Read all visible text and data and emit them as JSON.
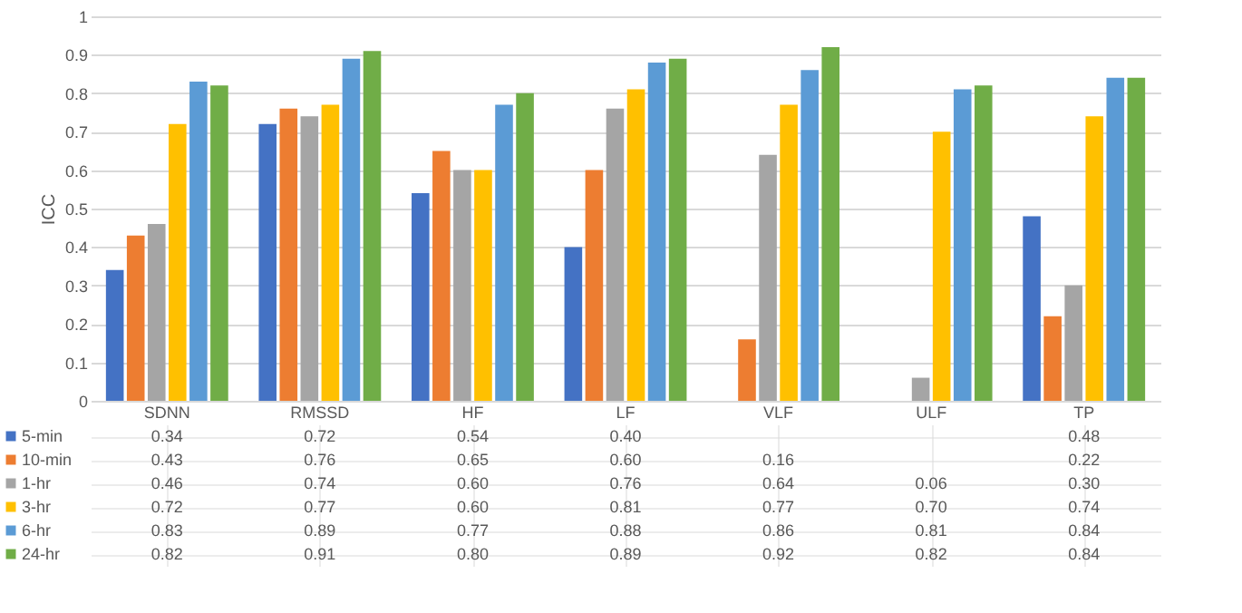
{
  "chart_data": {
    "type": "bar",
    "ylabel": "ICC",
    "categories": [
      "SDNN",
      "RMSSD",
      "HF",
      "LF",
      "VLF",
      "ULF",
      "TP"
    ],
    "series": [
      {
        "name": "5-min",
        "color": "#4472c4",
        "values": [
          0.34,
          0.72,
          0.54,
          0.4,
          null,
          null,
          0.48
        ],
        "value_labels": [
          "0.34",
          "0.72",
          "0.54",
          "0.40",
          null,
          null,
          "0.48"
        ]
      },
      {
        "name": "10-min",
        "color": "#ed7d31",
        "values": [
          0.43,
          0.76,
          0.65,
          0.6,
          0.16,
          null,
          0.22
        ],
        "value_labels": [
          "0.43",
          "0.76",
          "0.65",
          "0.60",
          "0.16",
          null,
          "0.22"
        ]
      },
      {
        "name": "1-hr",
        "color": "#a5a5a5",
        "values": [
          0.46,
          0.74,
          0.6,
          0.76,
          0.64,
          0.06,
          0.3
        ],
        "value_labels": [
          "0.46",
          "0.74",
          "0.60",
          "0.76",
          "0.64",
          "0.06",
          "0.30"
        ]
      },
      {
        "name": "3-hr",
        "color": "#ffc000",
        "values": [
          0.72,
          0.77,
          0.6,
          0.81,
          0.77,
          0.7,
          0.74
        ],
        "value_labels": [
          "0.72",
          "0.77",
          "0.60",
          "0.81",
          "0.77",
          "0.70",
          "0.74"
        ]
      },
      {
        "name": "6-hr",
        "color": "#5b9bd5",
        "values": [
          0.83,
          0.89,
          0.77,
          0.88,
          0.86,
          0.81,
          0.84
        ],
        "value_labels": [
          "0.83",
          "0.89",
          "0.77",
          "0.88",
          "0.86",
          "0.81",
          "0.84"
        ]
      },
      {
        "name": "24-hr",
        "color": "#70ad47",
        "values": [
          0.82,
          0.91,
          0.8,
          0.89,
          0.92,
          0.82,
          0.84
        ],
        "value_labels": [
          "0.82",
          "0.91",
          "0.80",
          "0.89",
          "0.92",
          "0.82",
          "0.84"
        ]
      }
    ],
    "ylim": [
      0,
      1
    ],
    "yticks": [
      {
        "value": 0,
        "label": "0"
      },
      0.1,
      0.2,
      0.3,
      0.4,
      0.5,
      0.6,
      0.7,
      0.8,
      0.9,
      {
        "value": 1,
        "label": "1"
      }
    ],
    "grid": "y",
    "legend": "bottom"
  }
}
